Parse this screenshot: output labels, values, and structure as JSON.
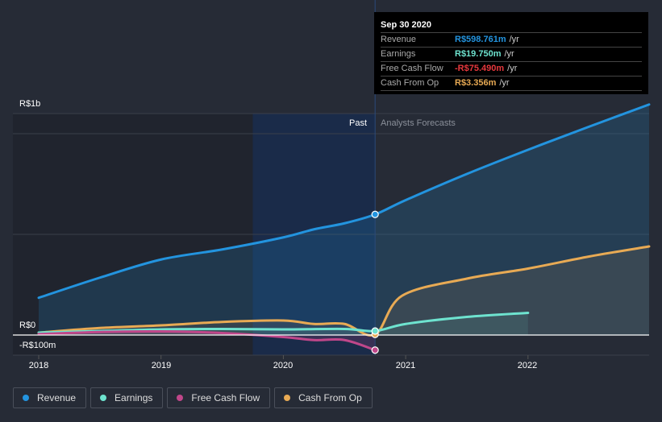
{
  "tooltip": {
    "date": "Sep 30 2020",
    "rows": [
      {
        "label": "Revenue",
        "value": "R$598.761m",
        "unit": "/yr",
        "color": "#2394df"
      },
      {
        "label": "Earnings",
        "value": "R$19.750m",
        "unit": "/yr",
        "color": "#6ee3cf"
      },
      {
        "label": "Free Cash Flow",
        "value": "-R$75.490m",
        "unit": "/yr",
        "color": "#e8383d"
      },
      {
        "label": "Cash From Op",
        "value": "R$3.356m",
        "unit": "/yr",
        "color": "#e8aa54"
      }
    ]
  },
  "legend": [
    {
      "label": "Revenue",
      "color": "#2394df"
    },
    {
      "label": "Earnings",
      "color": "#6ee3cf"
    },
    {
      "label": "Free Cash Flow",
      "color": "#c0478a"
    },
    {
      "label": "Cash From Op",
      "color": "#e8aa54"
    }
  ],
  "segments": {
    "past": "Past",
    "forecast": "Analysts Forecasts"
  },
  "chart_data": {
    "type": "line",
    "title": "",
    "xlabel": "",
    "ylabel": "",
    "x_ticks": [
      "2018",
      "2019",
      "2020",
      "2021",
      "2022"
    ],
    "y_ticks": [
      {
        "value": 1000,
        "label": "R$1b"
      },
      {
        "value": 0,
        "label": "R$0"
      },
      {
        "value": -100,
        "label": "-R$100m"
      }
    ],
    "xlim": [
      2018.0,
      2022.99
    ],
    "ylim": [
      -100,
      1100
    ],
    "past_end": 2020.75,
    "highlight_start": 2019.75,
    "units": "R$ millions",
    "series": [
      {
        "name": "Revenue",
        "color": "#2394df",
        "x": [
          2018.0,
          2018.5,
          2019.0,
          2019.5,
          2020.0,
          2020.25,
          2020.5,
          2020.75,
          2021.0,
          2021.5,
          2022.0,
          2022.5,
          2022.99
        ],
        "y": [
          185,
          285,
          375,
          425,
          485,
          525,
          555,
          599,
          670,
          800,
          920,
          1035,
          1145
        ]
      },
      {
        "name": "Earnings",
        "color": "#6ee3cf",
        "x": [
          2018.0,
          2018.5,
          2019.0,
          2019.5,
          2020.0,
          2020.5,
          2020.75,
          2021.0,
          2021.5,
          2022.0
        ],
        "y": [
          12,
          20,
          28,
          30,
          28,
          30,
          20,
          55,
          90,
          110
        ]
      },
      {
        "name": "Free Cash Flow",
        "color": "#c0478a",
        "x": [
          2018.0,
          2018.5,
          2019.0,
          2019.5,
          2020.0,
          2020.25,
          2020.5,
          2020.75
        ],
        "y": [
          5,
          15,
          18,
          10,
          -10,
          -25,
          -25,
          -75
        ]
      },
      {
        "name": "Cash From Op",
        "color": "#e8aa54",
        "x": [
          2018.0,
          2018.5,
          2019.0,
          2019.5,
          2020.0,
          2020.25,
          2020.5,
          2020.75,
          2020.97,
          2021.5,
          2022.0,
          2022.5,
          2022.99
        ],
        "y": [
          12,
          35,
          48,
          65,
          72,
          55,
          55,
          3,
          195,
          280,
          330,
          390,
          440
        ]
      }
    ]
  }
}
